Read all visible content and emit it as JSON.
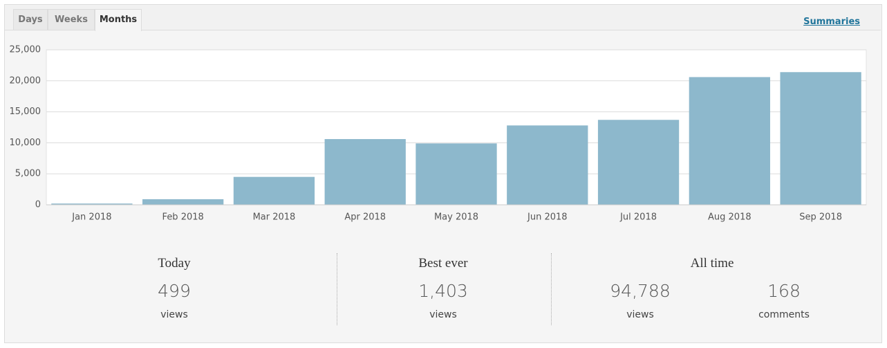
{
  "tabs": [
    "Days",
    "Weeks",
    "Months"
  ],
  "summaries_link": "Summaries",
  "chart_data": {
    "type": "bar",
    "categories": [
      "Jan 2018",
      "Feb 2018",
      "Mar 2018",
      "Apr 2018",
      "May 2018",
      "Jun 2018",
      "Jul 2018",
      "Aug 2018",
      "Sep 2018"
    ],
    "values": [
      200,
      900,
      4500,
      10600,
      9900,
      12800,
      13700,
      20600,
      21400
    ],
    "color": "#8db8cc",
    "ylim": [
      0,
      25000
    ],
    "yticks": [
      0,
      {
        "value": 5000,
        "label": "5,000"
      },
      {
        "value": 10000,
        "label": "10,000"
      },
      {
        "value": 15000,
        "label": "15,000"
      },
      {
        "value": 20000,
        "label": "20,000"
      },
      {
        "value": 25000,
        "label": "25,000"
      }
    ],
    "grid": true
  },
  "stats": {
    "today": {
      "title": "Today",
      "value": "499",
      "label": "views"
    },
    "best_ever": {
      "title": "Best ever",
      "value": "1,403",
      "label": "views"
    },
    "all_time": {
      "title": "All time",
      "views": {
        "value": "94,788",
        "label": "views"
      },
      "comments": {
        "value": "168",
        "label": "comments"
      }
    }
  }
}
